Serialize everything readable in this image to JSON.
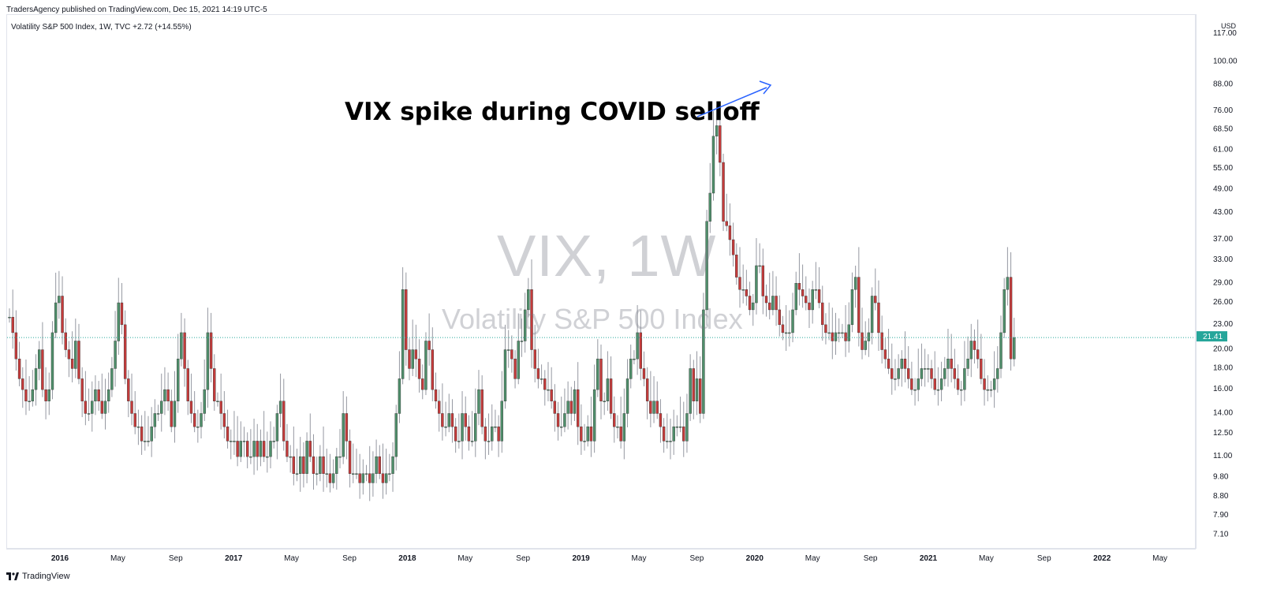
{
  "header": {
    "publisher": "TradersAgency published on TradingView.com, Dec 15, 2021 14:19 UTC-5",
    "legend": "Volatility S&P 500 Index, 1W, TVC  +2.72 (+14.55%)"
  },
  "watermark": {
    "symbol": "VIX, 1W",
    "name": "Volatility S&P 500 Index"
  },
  "annotation": {
    "text": "VIX spike during COVID selloff"
  },
  "footer": {
    "brand": "TradingView"
  },
  "colors": {
    "up": "#4f8f6b",
    "down": "#c43b3b",
    "wick": "#9598a1",
    "arrow": "#2962ff",
    "badge": "#26a69a"
  },
  "chart_data": {
    "type": "candlestick",
    "y_scale": "log",
    "ylim": [
      6.6,
      130
    ],
    "price_axis_unit": "USD",
    "price_ticks": [
      "117.00",
      "100.00",
      "88.00",
      "76.00",
      "68.50",
      "61.00",
      "55.00",
      "49.00",
      "43.00",
      "37.00",
      "33.00",
      "29.00",
      "26.00",
      "23.00",
      "20.00",
      "18.00",
      "16.00",
      "14.00",
      "12.50",
      "11.00",
      "9.80",
      "8.80",
      "7.90",
      "7.10"
    ],
    "time_ticks": [
      {
        "label": "2016",
        "year": true
      },
      {
        "label": "May",
        "year": false
      },
      {
        "label": "Sep",
        "year": false
      },
      {
        "label": "2017",
        "year": true
      },
      {
        "label": "May",
        "year": false
      },
      {
        "label": "Sep",
        "year": false
      },
      {
        "label": "2018",
        "year": true
      },
      {
        "label": "May",
        "year": false
      },
      {
        "label": "Sep",
        "year": false
      },
      {
        "label": "2019",
        "year": true
      },
      {
        "label": "May",
        "year": false
      },
      {
        "label": "Sep",
        "year": false
      },
      {
        "label": "2020",
        "year": true
      },
      {
        "label": "May",
        "year": false
      },
      {
        "label": "Sep",
        "year": false
      },
      {
        "label": "2021",
        "year": true
      },
      {
        "label": "May",
        "year": false
      },
      {
        "label": "Sep",
        "year": false
      },
      {
        "label": "2022",
        "year": true
      },
      {
        "label": "May",
        "year": false
      }
    ],
    "last_price": {
      "symbol": "VIX",
      "value": "21.41"
    },
    "weekly_close": [
      24,
      22,
      19,
      17,
      16,
      15,
      15,
      16,
      18,
      20,
      16,
      15,
      16,
      22,
      26,
      27,
      22,
      20,
      19,
      18,
      21,
      17,
      15,
      14,
      14,
      15,
      16,
      15,
      14,
      15,
      16,
      18,
      21,
      26,
      23,
      17,
      15,
      14,
      13,
      13,
      12,
      12,
      12,
      13,
      14,
      14,
      15,
      16,
      15,
      13,
      15,
      19,
      22,
      18,
      15,
      14,
      13,
      13,
      14,
      16,
      22,
      18,
      15,
      15,
      14,
      13,
      12,
      12,
      12,
      11,
      12,
      12,
      11,
      11,
      12,
      11,
      12,
      11,
      11,
      12,
      12,
      14,
      15,
      12,
      11,
      11,
      10,
      10,
      11,
      10,
      12,
      11,
      10,
      10,
      11,
      10,
      10,
      9.5,
      10,
      11,
      11,
      14,
      12,
      10,
      10,
      10,
      9.5,
      10,
      10,
      9.5,
      10,
      11,
      10,
      9.5,
      10,
      10,
      11,
      14,
      17,
      28,
      20,
      18,
      20,
      19,
      17,
      16,
      21,
      20,
      16,
      15,
      14,
      13,
      13,
      14,
      13,
      12,
      12,
      14,
      13,
      12,
      12,
      14,
      16,
      13,
      12,
      12,
      13,
      13,
      12,
      15,
      20,
      20,
      19,
      17,
      21,
      21,
      25,
      28,
      20,
      18,
      17,
      17,
      16,
      16,
      15,
      14,
      13,
      13,
      14,
      15,
      14,
      16,
      13,
      12,
      12,
      13,
      12,
      16,
      19,
      15,
      15,
      17,
      14,
      13,
      13,
      12,
      14,
      17,
      19,
      19,
      22,
      18,
      17,
      15,
      14,
      15,
      14,
      13,
      12,
      12,
      12,
      13,
      13,
      13,
      12,
      14,
      18,
      15,
      17,
      14,
      25,
      41,
      48,
      66,
      70,
      57,
      41,
      40,
      37,
      34,
      30,
      28,
      28,
      27,
      25,
      26,
      32,
      32,
      27,
      26,
      25,
      27,
      25,
      23,
      22,
      22,
      22,
      25,
      29,
      28,
      27,
      26,
      25,
      28,
      28,
      26,
      23,
      22,
      22,
      21,
      22,
      22,
      22,
      21,
      23,
      28,
      30,
      22,
      20,
      21,
      22,
      27,
      26,
      22,
      20,
      19,
      18,
      17,
      17,
      18,
      19,
      18,
      17,
      16,
      16,
      17,
      18,
      18,
      18,
      17,
      16,
      16,
      17,
      18,
      19,
      18,
      17,
      16,
      16,
      18,
      19,
      21,
      20,
      19,
      17,
      16,
      16,
      16,
      17,
      18,
      22,
      28,
      30,
      19,
      21.41
    ]
  }
}
